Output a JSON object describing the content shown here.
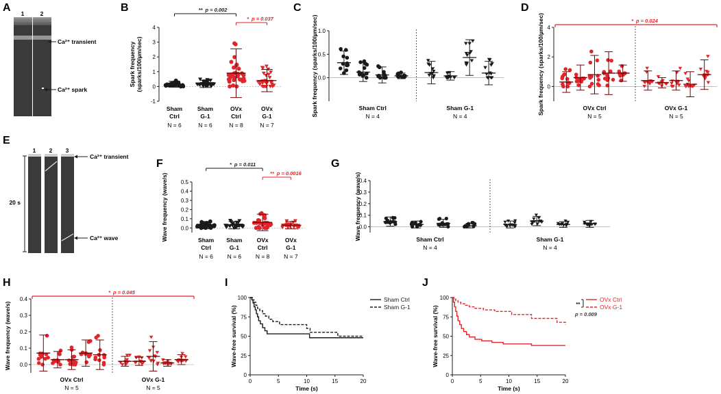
{
  "colors": {
    "black": "#1a1a1a",
    "red": "#e0262b",
    "grey": "#555555"
  },
  "chart_data": [
    {
      "id": "A",
      "type": "image",
      "label": "A",
      "lanes": [
        "1",
        "2"
      ],
      "annotations": [
        "Ca²⁺ transient",
        "Ca²⁺ spark"
      ]
    },
    {
      "id": "B",
      "type": "scatter",
      "label": "B",
      "ylabel": "Spark frequency (sparks/100/µm/sec)",
      "ylabel_1": "Spark frequency",
      "ylabel_2": "(sparks/100/µm/sec)",
      "ylim": [
        -1,
        4
      ],
      "yticks": [
        "-1",
        "0",
        "1",
        "2",
        "3",
        "4"
      ],
      "groups": [
        {
          "line1": "Sham",
          "line2": "Ctrl",
          "n": "N = 6",
          "mean": 0.15,
          "sd": 0.2,
          "color": "black",
          "marker": "circle"
        },
        {
          "line1": "Sham",
          "line2": "G-1",
          "n": "N = 6",
          "mean": 0.18,
          "sd": 0.25,
          "color": "black",
          "marker": "triangle"
        },
        {
          "line1": "OVx",
          "line2": "Ctrl",
          "n": "N = 8",
          "mean": 0.9,
          "sd": 1.65,
          "color": "red",
          "marker": "circle"
        },
        {
          "line1": "OVx",
          "line2": "G-1",
          "n": "N = 7",
          "mean": 0.4,
          "sd": 0.75,
          "color": "red",
          "marker": "triangle"
        }
      ],
      "sig": [
        {
          "stars": "**",
          "p": "p = 0.002",
          "from": 0,
          "to": 2,
          "color": "black"
        },
        {
          "stars": "*",
          "p": "p = 0.037",
          "from": 2,
          "to": 3,
          "color": "red"
        }
      ]
    },
    {
      "id": "C",
      "type": "scatter",
      "label": "C",
      "ylabel": "Spark frequency (sparks/100/µm/sec)",
      "ylim": [
        -0.5,
        1
      ],
      "yticks": [
        "0.0",
        "0.5",
        "1.0"
      ],
      "yticks_v": [
        0,
        0.5,
        1
      ],
      "blocks": [
        {
          "name": "Sham Ctrl",
          "n": "N = 4",
          "color": "black",
          "marker": "circle",
          "animals": [
            {
              "mean": 0.32,
              "sd": 0.25
            },
            {
              "mean": 0.12,
              "sd": 0.2
            },
            {
              "mean": 0.06,
              "sd": 0.17
            },
            {
              "mean": 0.04,
              "sd": 0.06
            }
          ]
        },
        {
          "name": "Sham G-1",
          "n": "N = 4",
          "color": "black",
          "marker": "triangle",
          "animals": [
            {
              "mean": 0.11,
              "sd": 0.24
            },
            {
              "mean": 0.04,
              "sd": 0.09
            },
            {
              "mean": 0.43,
              "sd": 0.38
            },
            {
              "mean": 0.1,
              "sd": 0.25
            }
          ]
        }
      ]
    },
    {
      "id": "D",
      "type": "scatter",
      "label": "D",
      "ylabel": "Spark frequency (sparks/100/µm/sec)",
      "ylim": [
        -1,
        4
      ],
      "yticks": [
        "0",
        "2",
        "4"
      ],
      "yticks_v": [
        0,
        2,
        4
      ],
      "blocks": [
        {
          "name": "OVx Ctrl",
          "n": "N = 5",
          "color": "red",
          "marker": "circle",
          "animals": [
            {
              "mean": 0.3,
              "sd": 0.7
            },
            {
              "mean": 0.6,
              "sd": 0.85
            },
            {
              "mean": 0.8,
              "sd": 1.3
            },
            {
              "mean": 0.9,
              "sd": 1.45
            },
            {
              "mean": 0.9,
              "sd": 0.55
            }
          ]
        },
        {
          "name": "OVx G-1",
          "n": "N = 5",
          "color": "red",
          "marker": "triangle",
          "animals": [
            {
              "mean": 0.4,
              "sd": 0.65
            },
            {
              "mean": 0.25,
              "sd": 0.35
            },
            {
              "mean": 0.4,
              "sd": 0.65
            },
            {
              "mean": 0.15,
              "sd": 0.85
            },
            {
              "mean": 0.8,
              "sd": 1.0
            }
          ]
        }
      ],
      "sig": {
        "stars": "*",
        "p": "p = 0.024",
        "color": "red"
      }
    },
    {
      "id": "E",
      "type": "image",
      "label": "E",
      "lanes": [
        "1",
        "2",
        "3"
      ],
      "scale": "20 s",
      "annotations": [
        "Ca²⁺ transient",
        "Ca²⁺ wave"
      ]
    },
    {
      "id": "F",
      "type": "scatter",
      "label": "F",
      "ylabel": "Wave frequency (wave/s)",
      "ylim": [
        -0.05,
        0.5
      ],
      "yticks": [
        "0.0",
        "0.1",
        "0.2",
        "0.3",
        "0.4",
        "0.5"
      ],
      "groups": [
        {
          "line1": "Sham",
          "line2": "Ctrl",
          "n": "N = 6",
          "mean": 0.03,
          "sd": 0.04,
          "color": "black",
          "marker": "circle"
        },
        {
          "line1": "Sham",
          "line2": "G-1",
          "n": "N = 6",
          "mean": 0.03,
          "sd": 0.04,
          "color": "black",
          "marker": "triangle"
        },
        {
          "line1": "OVx",
          "line2": "Ctrl",
          "n": "N = 8",
          "mean": 0.06,
          "sd": 0.09,
          "color": "red",
          "marker": "circle"
        },
        {
          "line1": "OVx",
          "line2": "G-1",
          "n": "N = 7",
          "mean": 0.03,
          "sd": 0.04,
          "color": "red",
          "marker": "triangle"
        }
      ],
      "sig": [
        {
          "stars": "*",
          "p": "p = 0.011",
          "from": 0,
          "to": 2,
          "color": "black"
        },
        {
          "stars": "**",
          "p": "p = 0.0016",
          "from": 2,
          "to": 3,
          "color": "red"
        }
      ]
    },
    {
      "id": "G",
      "type": "scatter",
      "label": "G",
      "ylabel": "Wave frequency (wave/s)",
      "ylim": [
        -0.05,
        0.4
      ],
      "yticks": [
        "0.0",
        "0.1",
        "0.2",
        "0.3",
        "0.4"
      ],
      "blocks": [
        {
          "name": "Sham Ctrl",
          "n": "N = 4",
          "color": "black",
          "marker": "circle",
          "animals": [
            {
              "mean": 0.045,
              "sd": 0.04
            },
            {
              "mean": 0.02,
              "sd": 0.03
            },
            {
              "mean": 0.03,
              "sd": 0.035
            },
            {
              "mean": 0.01,
              "sd": 0.02
            }
          ]
        },
        {
          "name": "Sham G-1",
          "n": "N = 4",
          "color": "black",
          "marker": "triangle",
          "animals": [
            {
              "mean": 0.02,
              "sd": 0.03
            },
            {
              "mean": 0.05,
              "sd": 0.04
            },
            {
              "mean": 0.02,
              "sd": 0.025
            },
            {
              "mean": 0.025,
              "sd": 0.03
            }
          ]
        }
      ]
    },
    {
      "id": "H",
      "type": "scatter",
      "label": "H",
      "ylabel": "Wave frequency (wave/s)",
      "ylim": [
        -0.05,
        0.4
      ],
      "yticks": [
        "0.0",
        "0.1",
        "0.2",
        "0.3",
        "0.4"
      ],
      "blocks": [
        {
          "name": "OVx Ctrl",
          "n": "N = 5",
          "color": "red",
          "marker": "circle",
          "animals": [
            {
              "mean": 0.07,
              "sd": 0.11
            },
            {
              "mean": 0.03,
              "sd": 0.05
            },
            {
              "mean": 0.03,
              "sd": 0.06
            },
            {
              "mean": 0.07,
              "sd": 0.08
            },
            {
              "mean": 0.06,
              "sd": 0.09
            }
          ]
        },
        {
          "name": "OVx G-1",
          "n": "N = 5",
          "color": "red",
          "marker": "triangle",
          "animals": [
            {
              "mean": 0.02,
              "sd": 0.03
            },
            {
              "mean": 0.02,
              "sd": 0.025
            },
            {
              "mean": 0.05,
              "sd": 0.09
            },
            {
              "mean": 0.01,
              "sd": 0.02
            },
            {
              "mean": 0.03,
              "sd": 0.03
            }
          ]
        }
      ],
      "sig": {
        "stars": "*",
        "p": "p = 0.045",
        "color": "red"
      }
    },
    {
      "id": "I",
      "type": "line",
      "label": "I",
      "ylabel": "Wave-free survival (%)",
      "xlabel": "Time (s)",
      "xlim": [
        0,
        20
      ],
      "ylim": [
        0,
        100
      ],
      "xticks": [
        "0",
        "5",
        "10",
        "15",
        "20"
      ],
      "yticks": [
        "0",
        "25",
        "50",
        "75",
        "100"
      ],
      "legend_position": "top-right",
      "series": [
        {
          "name": "Sham Ctrl",
          "color": "black",
          "dash": false,
          "x": [
            0,
            0.3,
            0.5,
            0.7,
            0.9,
            1.1,
            1.3,
            1.5,
            1.8,
            2.2,
            2.6,
            3,
            10.5,
            20
          ],
          "y": [
            100,
            97,
            93,
            88,
            84,
            79,
            75,
            70,
            66,
            61,
            57,
            53,
            48,
            48
          ]
        },
        {
          "name": "Sham G-1",
          "color": "black",
          "dash": true,
          "x": [
            0,
            0.4,
            0.7,
            1,
            1.3,
            1.7,
            2.2,
            2.7,
            3.3,
            4,
            5.2,
            10,
            10.6,
            15.5,
            20
          ],
          "y": [
            100,
            97,
            94,
            90,
            86,
            83,
            79,
            76,
            72,
            69,
            65,
            60,
            55,
            50,
            50
          ]
        }
      ]
    },
    {
      "id": "J",
      "type": "line",
      "label": "J",
      "ylabel": "Wave-free survival (%)",
      "xlabel": "Time (s)",
      "xlim": [
        0,
        20
      ],
      "ylim": [
        0,
        100
      ],
      "xticks": [
        "0",
        "5",
        "10",
        "15",
        "20"
      ],
      "yticks": [
        "0",
        "25",
        "50",
        "75",
        "100"
      ],
      "legend_position": "top-right",
      "sig": {
        "stars": "**",
        "p": "p = 0.009"
      },
      "series": [
        {
          "name": "OVx Ctrl",
          "color": "red",
          "dash": false,
          "x": [
            0,
            0.2,
            0.4,
            0.6,
            0.8,
            1,
            1.3,
            1.6,
            2,
            2.5,
            3,
            4,
            5.2,
            7,
            9,
            14,
            20
          ],
          "y": [
            100,
            94,
            88,
            82,
            76,
            70,
            65,
            60,
            56,
            52,
            49,
            46,
            44,
            42,
            40,
            38,
            38
          ]
        },
        {
          "name": "OVx G-1",
          "color": "red",
          "dash": true,
          "x": [
            0,
            0.3,
            0.6,
            1,
            1.5,
            2.2,
            3,
            4,
            5.5,
            7.5,
            10.5,
            14,
            18.5,
            20
          ],
          "y": [
            100,
            98,
            96,
            94,
            92,
            90,
            88,
            86,
            84,
            82,
            78,
            73,
            68,
            65
          ]
        }
      ]
    }
  ]
}
